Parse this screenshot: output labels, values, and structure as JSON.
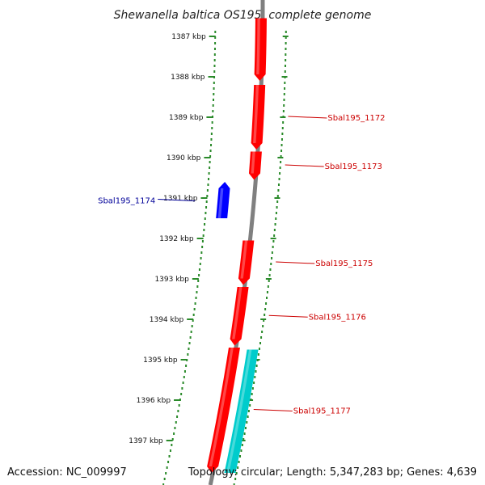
{
  "title": "Shewanella baltica OS195, complete genome",
  "footer": {
    "accession": "Accession: NC_009997",
    "stats": "Topology: circular; Length: 5,347,283 bp; Genes: 4,639"
  },
  "ticks": [
    "1387 kbp",
    "1388 kbp",
    "1389 kbp",
    "1390 kbp",
    "1391 kbp",
    "1392 kbp",
    "1393 kbp",
    "1394 kbp",
    "1395 kbp",
    "1396 kbp",
    "1397 kbp"
  ],
  "genes": [
    {
      "label": "",
      "strand": "+",
      "start_kbp": 1386.55,
      "end_kbp": 1388.1,
      "color": "#ff0000"
    },
    {
      "label": "Sbal195_1172",
      "strand": "+",
      "start_kbp": 1388.2,
      "end_kbp": 1389.8,
      "color": "#ff0000"
    },
    {
      "label": "Sbal195_1173",
      "strand": "+",
      "start_kbp": 1389.85,
      "end_kbp": 1390.55,
      "color": "#ff0000"
    },
    {
      "label": "Sbal195_1174",
      "strand": "-",
      "start_kbp": 1390.6,
      "end_kbp": 1391.5,
      "color": "#0000ff"
    },
    {
      "label": "Sbal195_1175",
      "strand": "+",
      "start_kbp": 1392.05,
      "end_kbp": 1393.15,
      "color": "#ff0000"
    },
    {
      "label": "Sbal195_1176",
      "strand": "+",
      "start_kbp": 1393.2,
      "end_kbp": 1394.65,
      "color": "#ff0000"
    },
    {
      "label": "Sbal195_1177",
      "strand": "+",
      "start_kbp": 1394.7,
      "end_kbp": 1397.8,
      "color": "#ff0000"
    }
  ],
  "features": [
    {
      "color": "#00cccc",
      "start_kbp": 1394.75,
      "end_kbp": 1397.8
    }
  ],
  "colors": {
    "backbone": "#808080",
    "tick": "#2a8a2a",
    "forward_label": "#cc0000",
    "reverse_label": "#000099"
  }
}
